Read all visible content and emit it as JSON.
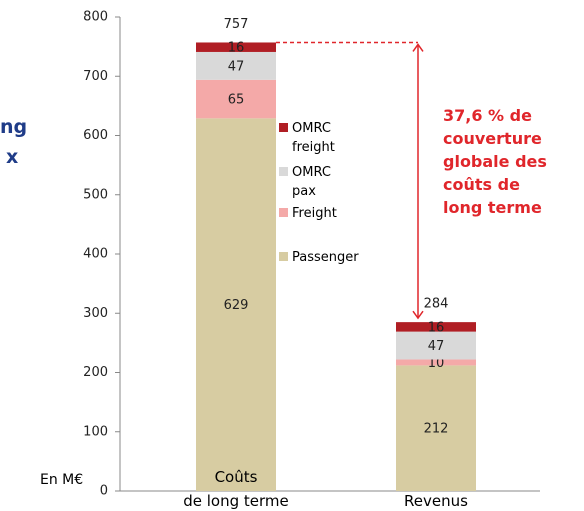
{
  "chart_data": {
    "type": "stacked_bar",
    "categories": [
      "Coûts\nde long terme",
      "Revenus"
    ],
    "series": [
      {
        "name": "Passenger",
        "color": "#d7cca2",
        "label_color": "#ffffff",
        "values": [
          629,
          212
        ]
      },
      {
        "name": "Freight",
        "color": "#f4a9a8",
        "label_color": "#ffffff",
        "values": [
          65,
          10
        ]
      },
      {
        "name": "OMRC\npax",
        "color": "#d9d9d9",
        "label_color": "#2e4b9b",
        "values": [
          47,
          47
        ]
      },
      {
        "name": "OMRC\nfreight",
        "color": "#b01e24",
        "label_color": "#f6c7c7",
        "values": [
          16,
          16
        ]
      }
    ],
    "totals": [
      757,
      284
    ],
    "ylim": [
      0,
      800
    ],
    "yticks": [
      0,
      100,
      200,
      300,
      400,
      500,
      600,
      700,
      800
    ],
    "unit_label": "En M€",
    "annotation": "37,6 % de\ncouverture\nglobale des\ncoûts de\nlong terme",
    "side_text": [
      "ng",
      "x"
    ]
  }
}
